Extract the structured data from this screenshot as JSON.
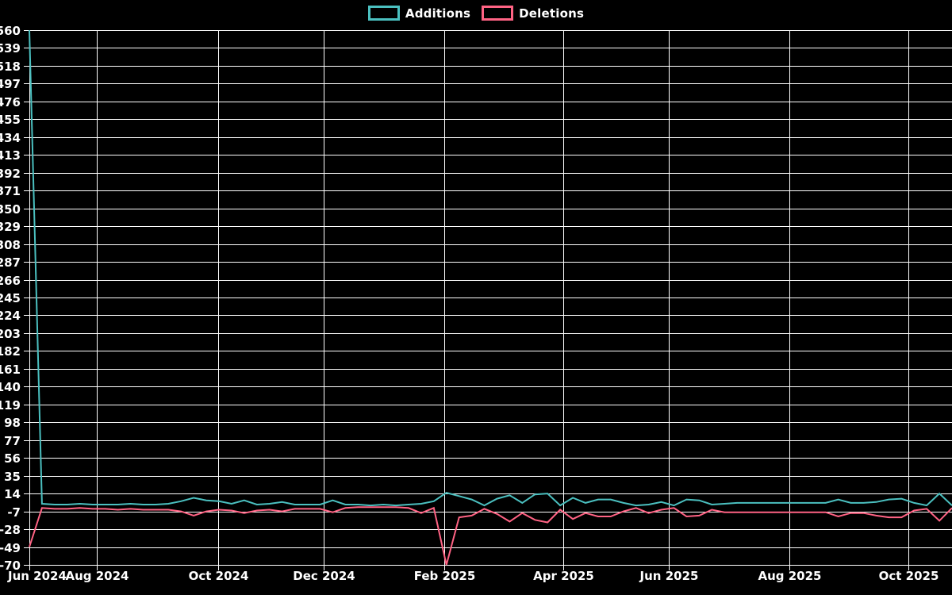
{
  "page": {
    "background_color": "#000000",
    "text_color": "#ffffff",
    "gridline_color": "#ffffff"
  },
  "legend": {
    "items": [
      {
        "label": "Additions",
        "color": "#4bc0c0"
      },
      {
        "label": "Deletions",
        "color": "#ff6384"
      }
    ]
  },
  "chart_data": {
    "type": "line",
    "title": "",
    "xlabel": "",
    "ylabel": "",
    "grid": true,
    "legend_position": "top-center",
    "y_axis": {
      "min": -70,
      "max": 560,
      "step": 21,
      "ticks": [
        560,
        539,
        518,
        497,
        476,
        455,
        434,
        413,
        392,
        371,
        350,
        329,
        308,
        287,
        266,
        245,
        224,
        203,
        182,
        161,
        140,
        119,
        98,
        77,
        56,
        35,
        14,
        -7,
        -28,
        -49,
        -70
      ]
    },
    "x_axis": {
      "ticks": [
        {
          "label": "Jun 2024",
          "f": 0.0
        },
        {
          "label": "Aug 2024",
          "f": 0.0731
        },
        {
          "label": "Oct 2024",
          "f": 0.2046
        },
        {
          "label": "Dec 2024",
          "f": 0.319
        },
        {
          "label": "Feb 2025",
          "f": 0.4497
        },
        {
          "label": "Apr 2025",
          "f": 0.5787
        },
        {
          "label": "Jun 2025",
          "f": 0.6931
        },
        {
          "label": "Aug 2025",
          "f": 0.8238
        },
        {
          "label": "Oct 2025",
          "f": 0.9528
        }
      ]
    },
    "series": [
      {
        "name": "Additions",
        "color": "#4bc0c0",
        "values": [
          560,
          2,
          1,
          1,
          2,
          1,
          1,
          1,
          2,
          1,
          1,
          2,
          5,
          9,
          6,
          5,
          2,
          6,
          1,
          2,
          4,
          1,
          1,
          1,
          6,
          1,
          1,
          0,
          1,
          0,
          1,
          2,
          5,
          15,
          11,
          7,
          0,
          8,
          12,
          3,
          13,
          14,
          0,
          9,
          3,
          7,
          7,
          3,
          0,
          1,
          4,
          0,
          7,
          6,
          1,
          2,
          3,
          3,
          3,
          3,
          3,
          3,
          3,
          3,
          7,
          3,
          3,
          4,
          7,
          8,
          3,
          0,
          14,
          0
        ]
      },
      {
        "name": "Deletions",
        "color": "#ff6384",
        "values": [
          -49,
          -3,
          -4,
          -4,
          -3,
          -4,
          -4,
          -5,
          -4,
          -5,
          -5,
          -5,
          -7,
          -12,
          -7,
          -5,
          -6,
          -9,
          -6,
          -5,
          -7,
          -4,
          -4,
          -4,
          -8,
          -3,
          -2,
          -2,
          -2,
          -2,
          -3,
          -9,
          -3,
          -70,
          -14,
          -12,
          -4,
          -10,
          -19,
          -9,
          -17,
          -20,
          -5,
          -16,
          -9,
          -13,
          -13,
          -7,
          -3,
          -9,
          -5,
          -3,
          -13,
          -12,
          -5,
          -8,
          -8,
          -8,
          -8,
          -8,
          -8,
          -8,
          -8,
          -8,
          -13,
          -9,
          -9,
          -12,
          -14,
          -14,
          -6,
          -4,
          -18,
          -3
        ]
      }
    ]
  }
}
